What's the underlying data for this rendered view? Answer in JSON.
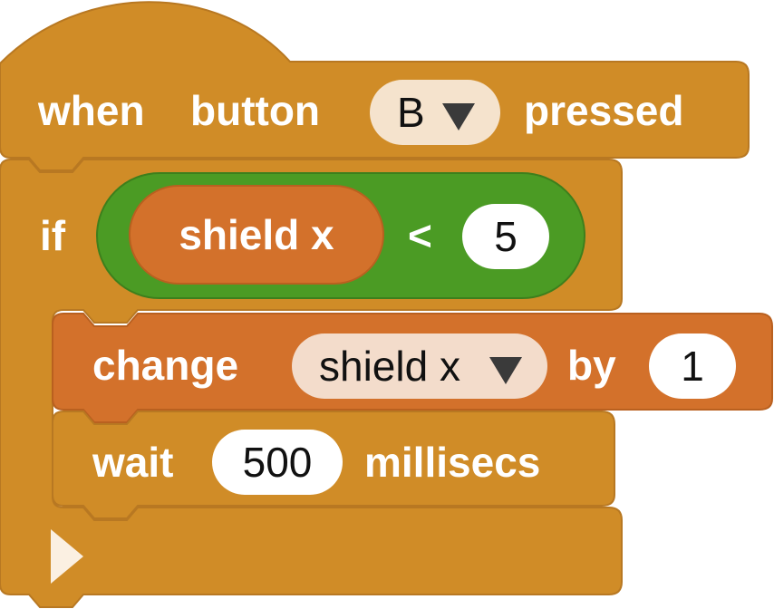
{
  "colors": {
    "control_block": "#d08c27",
    "variable_block": "#d3712b",
    "condition": "#4b9b24",
    "dropdown_light": "#f5e3cd",
    "dropdown_var": "#f3dccb",
    "number_input": "#ffffff"
  },
  "event_block": {
    "when": "when",
    "button": "button",
    "dropdown_value": "B",
    "pressed": "pressed"
  },
  "if_block": {
    "if": "if",
    "condition": {
      "variable": "shield x",
      "operator": "<",
      "value": "5"
    }
  },
  "change_block": {
    "change": "change",
    "variable": "shield x",
    "by": "by",
    "value": "1"
  },
  "wait_block": {
    "wait": "wait",
    "value": "500",
    "unit": "millisecs"
  },
  "icons": {
    "dropdown": "caret-down-icon",
    "collapse": "play-triangle-icon"
  }
}
